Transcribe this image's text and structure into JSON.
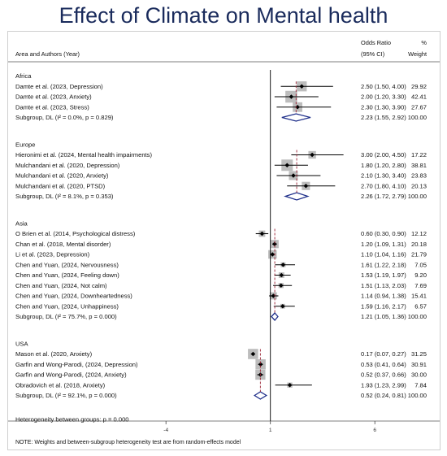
{
  "title": "Effect of Climate on Mental health",
  "header": {
    "study_col": "Area and Authors (Year)",
    "or_col_line1": "Odds Ratio",
    "or_col_line2": "(95% CI)",
    "weight_col_line1": "%",
    "weight_col_line2": "Weight"
  },
  "colors": {
    "title": "#1a2b5c",
    "point": "#000000",
    "weight_box": "#bdbdbd",
    "diamond": "#1f2f8a",
    "dashed_line": "#9b2335"
  },
  "chart_data": {
    "type": "forest",
    "x_axis": {
      "ticks": [
        -4,
        1,
        6
      ],
      "null_line": 1,
      "range": [
        -8.5,
        8.5
      ]
    },
    "groups": [
      {
        "name": "Africa",
        "studies": [
          {
            "label": "Damte et al. (2023, Depression)",
            "or": 2.5,
            "lo": 1.5,
            "hi": 4.0,
            "or_text": "2.50 (1.50, 4.00)",
            "weight": "29.92"
          },
          {
            "label": "Damte et al. (2023, Anxiety)",
            "or": 2.0,
            "lo": 1.2,
            "hi": 3.3,
            "or_text": "2.00 (1.20, 3.30)",
            "weight": "42.41"
          },
          {
            "label": "Damte et al. (2023, Stress)",
            "or": 2.3,
            "lo": 1.3,
            "hi": 3.9,
            "or_text": "2.30 (1.30, 3.90)",
            "weight": "27.67"
          }
        ],
        "subgroup": {
          "label": "Subgroup, DL (I² = 0.0%, p = 0.829)",
          "or": 2.23,
          "lo": 1.55,
          "hi": 2.92,
          "or_text": "2.23 (1.55, 2.92)",
          "weight": "100.00"
        }
      },
      {
        "name": "Europe",
        "studies": [
          {
            "label": "Hieronimi et al. (2024, Mental health impairments)",
            "or": 3.0,
            "lo": 2.0,
            "hi": 4.5,
            "or_text": "3.00 (2.00, 4.50)",
            "weight": "17.22"
          },
          {
            "label": "Mulchandani et al. (2020, Depression)",
            "or": 1.8,
            "lo": 1.2,
            "hi": 2.8,
            "or_text": "1.80 (1.20, 2.80)",
            "weight": "38.81"
          },
          {
            "label": "Mulchandani et al. (2020, Anxiety)",
            "or": 2.1,
            "lo": 1.3,
            "hi": 3.4,
            "or_text": "2.10 (1.30, 3.40)",
            "weight": "23.83"
          },
          {
            "label": "Mulchandani et al. (2020, PTSD)",
            "or": 2.7,
            "lo": 1.8,
            "hi": 4.1,
            "or_text": "2.70 (1.80, 4.10)",
            "weight": "20.13"
          }
        ],
        "subgroup": {
          "label": "Subgroup, DL (I² = 8.1%, p = 0.353)",
          "or": 2.26,
          "lo": 1.72,
          "hi": 2.79,
          "or_text": "2.26 (1.72, 2.79)",
          "weight": "100.00"
        }
      },
      {
        "name": "Asia",
        "studies": [
          {
            "label": "O Brien et al. (2014, Psychological distress)",
            "or": 0.6,
            "lo": 0.3,
            "hi": 0.9,
            "or_text": "0.60 (0.30, 0.90)",
            "weight": "12.12"
          },
          {
            "label": "Chan et al. (2018, Mental disorder)",
            "or": 1.2,
            "lo": 1.09,
            "hi": 1.31,
            "or_text": "1.20 (1.09, 1.31)",
            "weight": "20.18"
          },
          {
            "label": "Li et al. (2023, Depression)",
            "or": 1.1,
            "lo": 1.04,
            "hi": 1.16,
            "or_text": "1.10 (1.04, 1.16)",
            "weight": "21.79"
          },
          {
            "label": "Chen and Yuan, (2024, Nervousness)",
            "or": 1.61,
            "lo": 1.22,
            "hi": 2.18,
            "or_text": "1.61 (1.22, 2.18)",
            "weight": "7.05"
          },
          {
            "label": "Chen and Yuan, (2024, Feeling down)",
            "or": 1.53,
            "lo": 1.19,
            "hi": 1.97,
            "or_text": "1.53 (1.19, 1.97)",
            "weight": "9.20"
          },
          {
            "label": "Chen and Yuan, (2024, Not calm)",
            "or": 1.51,
            "lo": 1.13,
            "hi": 2.03,
            "or_text": "1.51 (1.13, 2.03)",
            "weight": "7.69"
          },
          {
            "label": "Chen and Yuan, (2024, Downheartedness)",
            "or": 1.14,
            "lo": 0.94,
            "hi": 1.38,
            "or_text": "1.14 (0.94, 1.38)",
            "weight": "15.41"
          },
          {
            "label": "Chen and Yuan, (2024, Unhappiness)",
            "or": 1.59,
            "lo": 1.16,
            "hi": 2.17,
            "or_text": "1.59 (1.16, 2.17)",
            "weight": "6.57"
          }
        ],
        "subgroup": {
          "label": "Subgroup, DL (I² = 75.7%, p = 0.000)",
          "or": 1.21,
          "lo": 1.05,
          "hi": 1.36,
          "or_text": "1.21 (1.05, 1.36)",
          "weight": "100.00"
        }
      },
      {
        "name": "USA",
        "studies": [
          {
            "label": "Mason et al. (2020, Anxiety)",
            "or": 0.17,
            "lo": 0.07,
            "hi": 0.27,
            "or_text": "0.17 (0.07, 0.27)",
            "weight": "31.25"
          },
          {
            "label": "Garfin and Wong-Parodi,   (2024, Depression)",
            "or": 0.53,
            "lo": 0.41,
            "hi": 0.64,
            "or_text": "0.53 (0.41, 0.64)",
            "weight": "30.91"
          },
          {
            "label": "Garfin and Wong-Parodi,   (2024, Anxiety)",
            "or": 0.52,
            "lo": 0.37,
            "hi": 0.66,
            "or_text": "0.52 (0.37, 0.66)",
            "weight": "30.00"
          },
          {
            "label": "Obradovich et al. (2018, Anxiety)",
            "or": 1.93,
            "lo": 1.23,
            "hi": 2.99,
            "or_text": "1.93 (1.23, 2.99)",
            "weight": "7.84"
          }
        ],
        "subgroup": {
          "label": "Subgroup, DL (I² = 92.1%, p = 0.000)",
          "or": 0.52,
          "lo": 0.24,
          "hi": 0.81,
          "or_text": "0.52 (0.24, 0.81)",
          "weight": "100.00"
        }
      }
    ],
    "heterogeneity_text": "Heterogeneity between groups: p = 0.000",
    "note": "NOTE: Weights and between-subgroup heterogeneity test are from random-effects model"
  }
}
